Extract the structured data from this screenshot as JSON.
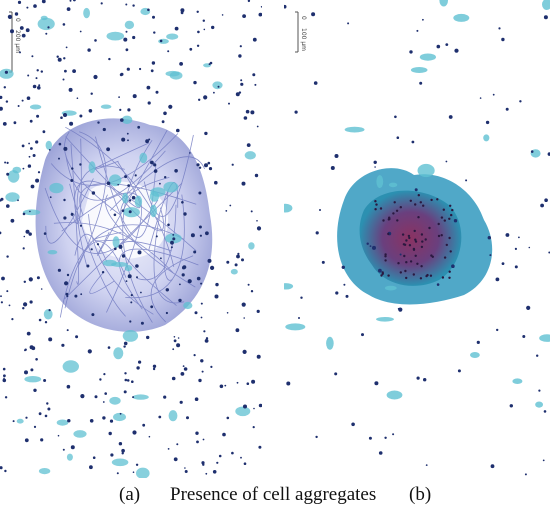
{
  "figure": {
    "label_a": "(a)",
    "caption": "Presence of cell aggregates",
    "label_b": "(b)"
  },
  "panel_a": {
    "scale_bar_text": "200 μm",
    "scale_tick": "0"
  },
  "panel_b": {
    "scale_bar_text": "100 μm",
    "scale_tick": "0"
  },
  "colors": {
    "background": "#ffffff",
    "cyan_cell": "#5fc0d2",
    "nucleus": "#1e2f6e",
    "aggregate_purple": "#7d86c6",
    "aggregate_core": "#8b2f5e",
    "aggregate_teal": "#2a8fb0"
  }
}
